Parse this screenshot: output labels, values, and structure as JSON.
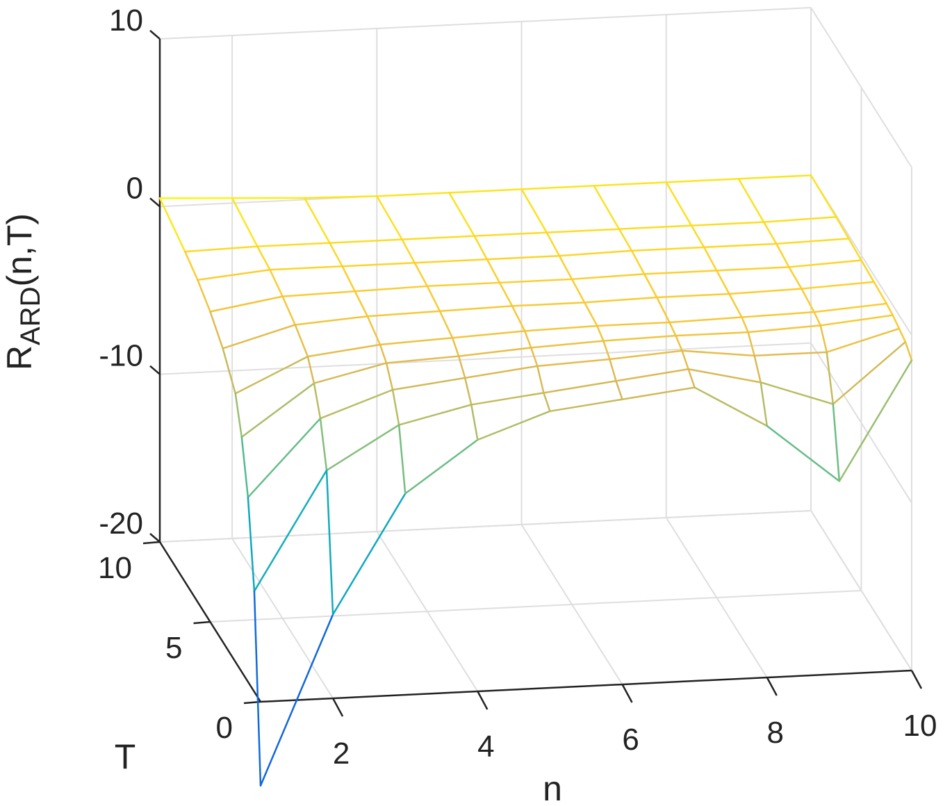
{
  "chart_data": {
    "type": "surface",
    "title": "",
    "xlabel": "n",
    "ylabel": "T",
    "zlabel_main": "R",
    "zlabel_sub": "ARD",
    "zlabel_tail": "(n,T)",
    "xlim": [
      1,
      10
    ],
    "ylim": [
      0,
      10
    ],
    "zlim": [
      -20,
      10
    ],
    "x_ticks": [
      "2",
      "4",
      "6",
      "8",
      "10"
    ],
    "y_ticks": [
      "0",
      "5",
      "10"
    ],
    "z_ticks": [
      "-20",
      "-10",
      "0",
      "10"
    ],
    "grid": true,
    "colormap": "parula",
    "n": [
      1,
      2,
      3,
      4,
      5,
      6,
      7,
      8,
      9,
      10
    ],
    "T": [
      0.0,
      0.625,
      1.25,
      1.875,
      2.5,
      3.75,
      5.0,
      6.25,
      7.5,
      10.0
    ],
    "z": [
      [
        -25.0,
        -15.0,
        -8.0,
        -5.0,
        -3.5,
        -3.0,
        -2.5,
        -5.0,
        -8.5,
        -1.5
      ],
      [
        -14.0,
        -7.0,
        -4.5,
        -3.5,
        -3.0,
        -2.5,
        -2.0,
        -3.0,
        -4.5,
        -1.0
      ],
      [
        -9.0,
        -4.5,
        -3.0,
        -2.5,
        -2.0,
        -1.8,
        -1.5,
        -2.0,
        -2.0,
        -0.8
      ],
      [
        -6.0,
        -3.0,
        -2.0,
        -1.8,
        -1.5,
        -1.3,
        -1.2,
        -1.2,
        -1.0,
        -0.6
      ],
      [
        -4.0,
        -2.0,
        -1.5,
        -1.3,
        -1.1,
        -1.0,
        -1.0,
        -0.9,
        -0.8,
        -0.5
      ],
      [
        -2.5,
        -1.3,
        -1.0,
        -0.9,
        -0.8,
        -0.8,
        -0.7,
        -0.7,
        -0.6,
        -0.4
      ],
      [
        -1.5,
        -0.8,
        -0.7,
        -0.6,
        -0.6,
        -0.6,
        -0.5,
        -0.5,
        -0.5,
        -0.3
      ],
      [
        -0.8,
        -0.4,
        -0.4,
        -0.4,
        -0.4,
        -0.4,
        -0.3,
        -0.3,
        -0.3,
        -0.2
      ],
      [
        -0.3,
        -0.2,
        -0.2,
        -0.2,
        -0.2,
        -0.2,
        -0.2,
        -0.2,
        -0.2,
        -0.1
      ],
      [
        0.5,
        0.3,
        0.1,
        0.0,
        0.0,
        0.0,
        0.0,
        0.0,
        0.0,
        0.0
      ]
    ]
  }
}
